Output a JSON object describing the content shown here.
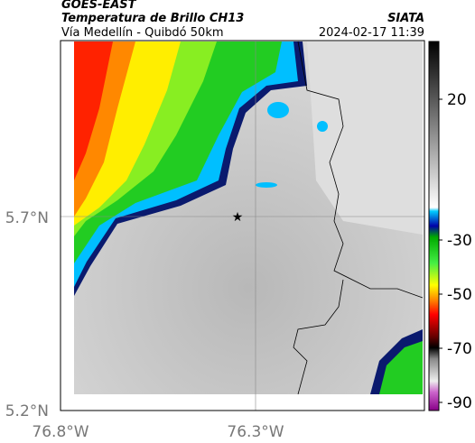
{
  "header": {
    "source": "GOES-EAST",
    "title": "Temperatura de Brillo CH13",
    "subtitle": "Vía Medellín - Quibdó 50km",
    "organization": "SIATA",
    "datetime": "2024-02-17 11:39"
  },
  "map": {
    "lat_labels": [
      "5.7°N",
      "5.2°N"
    ],
    "lon_labels": [
      "76.8°W",
      "76.3°W"
    ]
  },
  "colorbar": {
    "labels": [
      "20",
      "-30",
      "-50",
      "-70",
      "-90"
    ]
  }
}
